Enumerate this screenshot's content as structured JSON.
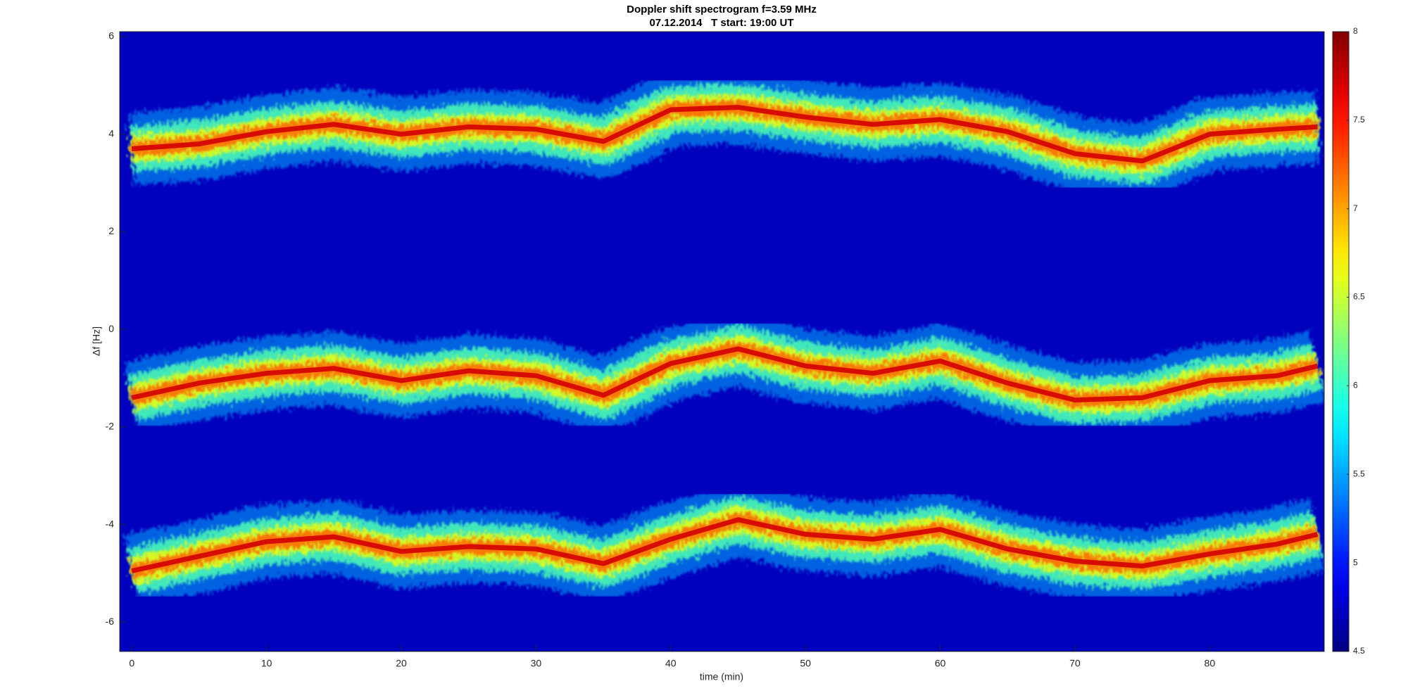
{
  "chart_data": {
    "type": "spectrogram",
    "title": "Doppler shift spectrogram f=3.59 MHz",
    "subtitle": "07.12.2014   T start: 19:00 UT",
    "x_label": "time (min)",
    "y_label": "Δf [Hz]",
    "x": [
      0,
      5,
      10,
      15,
      20,
      25,
      30,
      35,
      40,
      45,
      50,
      55,
      60,
      65,
      70,
      75,
      80,
      85,
      88
    ],
    "series": [
      {
        "values": [
          3.7,
          3.8,
          4.05,
          4.2,
          4.0,
          4.15,
          4.1,
          3.85,
          4.5,
          4.55,
          4.35,
          4.2,
          4.3,
          4.05,
          3.6,
          3.45,
          4.0,
          4.1,
          4.15
        ]
      },
      {
        "values": [
          -1.4,
          -1.1,
          -0.9,
          -0.8,
          -1.05,
          -0.85,
          -0.95,
          -1.35,
          -0.7,
          -0.4,
          -0.75,
          -0.9,
          -0.65,
          -1.1,
          -1.45,
          -1.4,
          -1.05,
          -0.95,
          -0.75
        ]
      },
      {
        "values": [
          -4.95,
          -4.65,
          -4.35,
          -4.25,
          -4.55,
          -4.45,
          -4.5,
          -4.8,
          -4.3,
          -3.9,
          -4.2,
          -4.3,
          -4.1,
          -4.5,
          -4.75,
          -4.85,
          -4.6,
          -4.4,
          -4.2
        ]
      }
    ],
    "xlim": [
      -0.9,
      88.5
    ],
    "xticks": [
      0,
      10,
      20,
      30,
      40,
      50,
      60,
      70,
      80
    ],
    "ylim": [
      -6.6,
      6.1
    ],
    "yticks": [
      -6,
      -4,
      -2,
      0,
      2,
      4,
      6
    ],
    "colormap": "jet",
    "clim": [
      4.5,
      8
    ],
    "cticks": [
      4.5,
      5,
      5.5,
      6,
      6.5,
      7,
      7.5,
      8
    ]
  }
}
